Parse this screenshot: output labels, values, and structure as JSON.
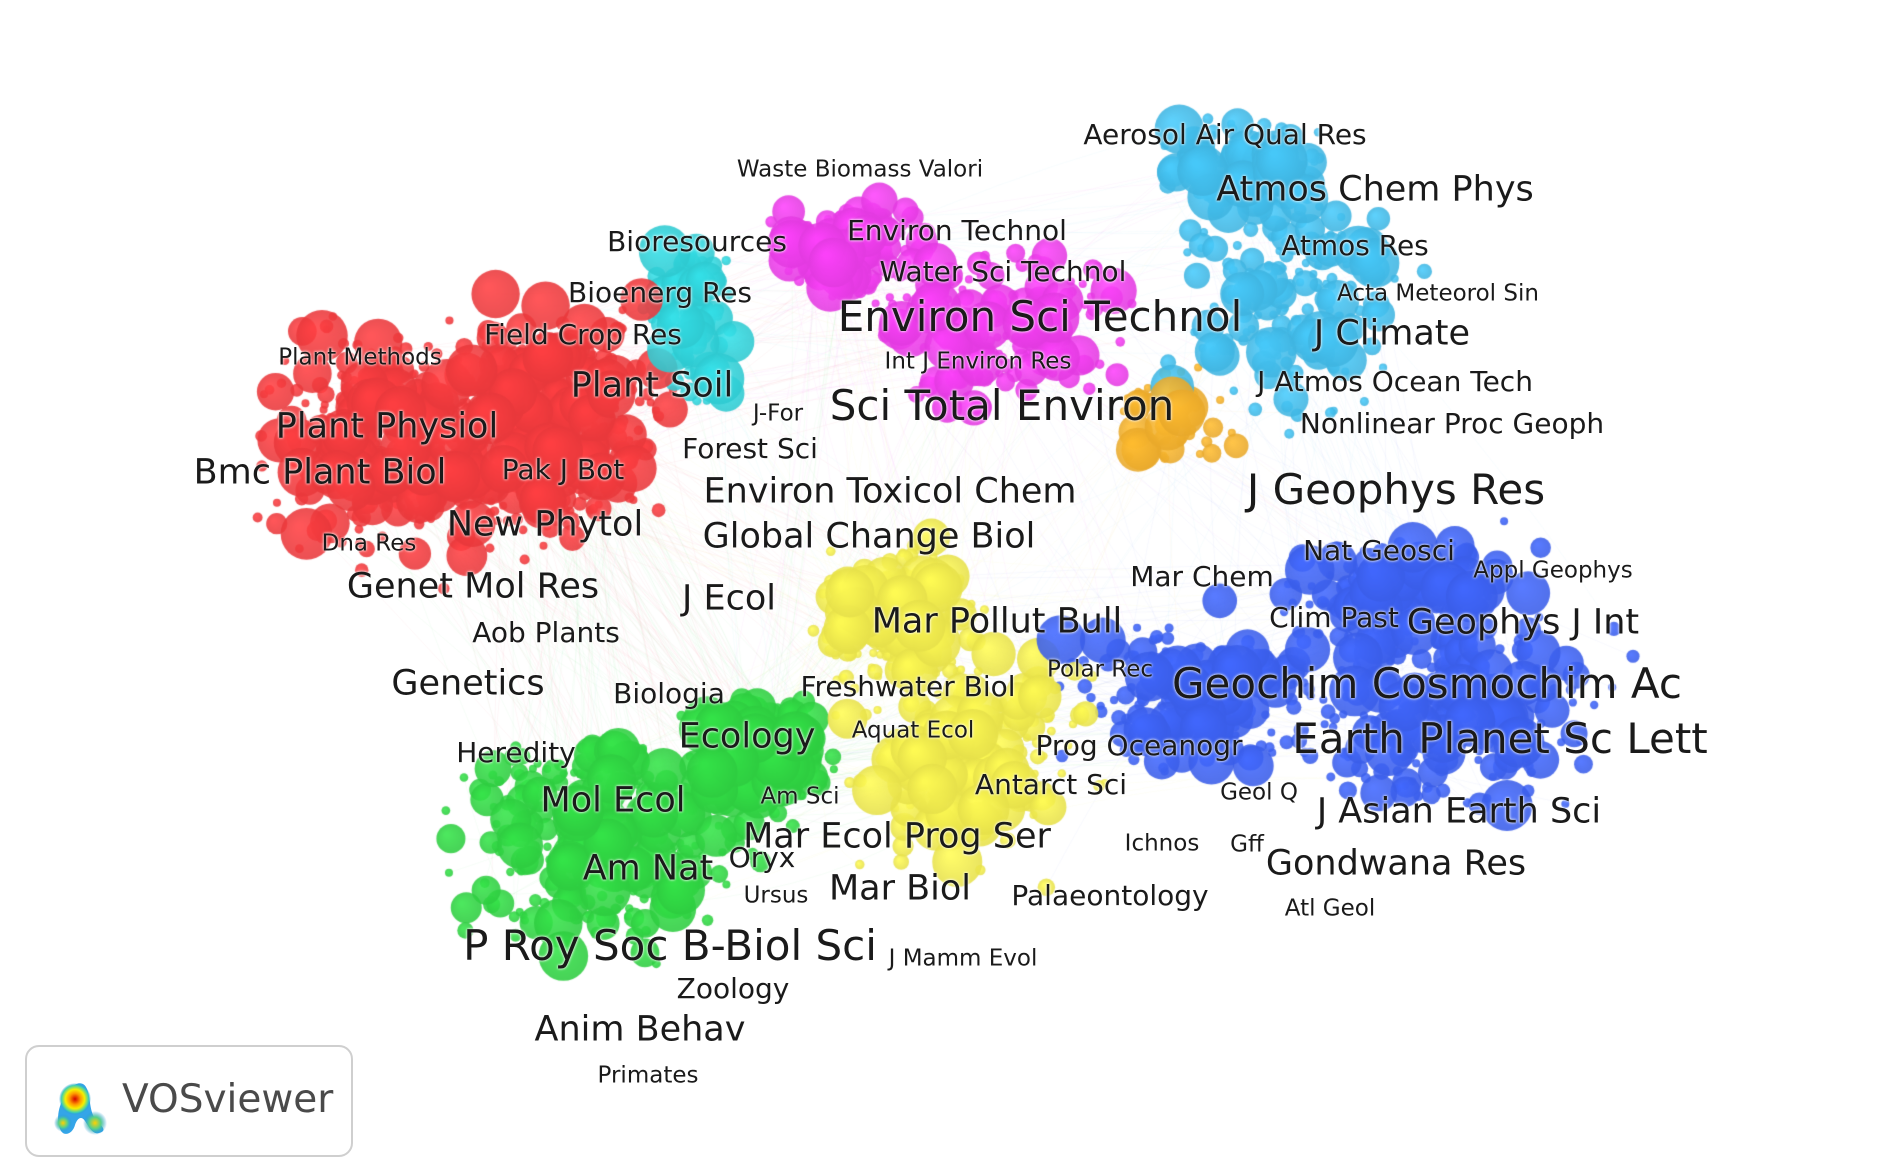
{
  "clusters": [
    {
      "id": "red",
      "color": "#e8383b"
    },
    {
      "id": "green",
      "color": "#2ecc40"
    },
    {
      "id": "blue",
      "color": "#3a5de8"
    },
    {
      "id": "yellow",
      "color": "#e6e04a"
    },
    {
      "id": "purple",
      "color": "#e23ae0"
    },
    {
      "id": "cyan",
      "color": "#2ec9d0"
    },
    {
      "id": "sky",
      "color": "#3fb4e0"
    },
    {
      "id": "orange",
      "color": "#e8a82a"
    }
  ],
  "labels": [
    {
      "text": "Aerosol Air Qual Res",
      "cluster": "sky",
      "level": 1
    },
    {
      "text": "Waste Biomass Valori",
      "cluster": "cyan",
      "level": 0
    },
    {
      "text": "Atmos Chem Phys",
      "cluster": "sky",
      "level": 2
    },
    {
      "text": "Bioresources",
      "cluster": "cyan",
      "level": 1
    },
    {
      "text": "Environ Technol",
      "cluster": "purple",
      "level": 1
    },
    {
      "text": "Atmos Res",
      "cluster": "sky",
      "level": 1
    },
    {
      "text": "Water Sci Technol",
      "cluster": "purple",
      "level": 1
    },
    {
      "text": "Bioenerg Res",
      "cluster": "red",
      "level": 1
    },
    {
      "text": "Acta Meteorol Sin",
      "cluster": "sky",
      "level": 0
    },
    {
      "text": "Environ Sci Technol",
      "cluster": "purple",
      "level": 3
    },
    {
      "text": "Field Crop Res",
      "cluster": "red",
      "level": 1
    },
    {
      "text": "J Climate",
      "cluster": "sky",
      "level": 2
    },
    {
      "text": "Plant Methods",
      "cluster": "red",
      "level": 0
    },
    {
      "text": "Int J Environ Res",
      "cluster": "purple",
      "level": 0
    },
    {
      "text": "Plant Soil",
      "cluster": "red",
      "level": 2
    },
    {
      "text": "J Atmos Ocean Tech",
      "cluster": "sky",
      "level": 1
    },
    {
      "text": "J-For",
      "cluster": "cyan",
      "level": 0
    },
    {
      "text": "Sci Total Environ",
      "cluster": "purple",
      "level": 3
    },
    {
      "text": "Plant Physiol",
      "cluster": "red",
      "level": 2
    },
    {
      "text": "Nonlinear Proc Geoph",
      "cluster": "sky",
      "level": 1
    },
    {
      "text": "Forest Sci",
      "cluster": "cyan",
      "level": 1
    },
    {
      "text": "Bmc Plant Biol",
      "cluster": "red",
      "level": 2
    },
    {
      "text": "Pak J Bot",
      "cluster": "red",
      "level": 1
    },
    {
      "text": "J Geophys Res",
      "cluster": "sky",
      "level": 3
    },
    {
      "text": "Environ Toxicol Chem",
      "cluster": "yellow",
      "level": 2
    },
    {
      "text": "New Phytol",
      "cluster": "red",
      "level": 2
    },
    {
      "text": "Global Change Biol",
      "cluster": "yellow",
      "level": 2
    },
    {
      "text": "Dna Res",
      "cluster": "red",
      "level": 0
    },
    {
      "text": "Nat Geosci",
      "cluster": "blue",
      "level": 1
    },
    {
      "text": "Appl Geophys",
      "cluster": "blue",
      "level": 0
    },
    {
      "text": "Mar Chem",
      "cluster": "blue",
      "level": 1
    },
    {
      "text": "Genet Mol Res",
      "cluster": "red",
      "level": 2
    },
    {
      "text": "J Ecol",
      "cluster": "red",
      "level": 2
    },
    {
      "text": "Clim Past",
      "cluster": "blue",
      "level": 1
    },
    {
      "text": "Geophys J Int",
      "cluster": "blue",
      "level": 2
    },
    {
      "text": "Mar Pollut Bull",
      "cluster": "yellow",
      "level": 2
    },
    {
      "text": "Aob Plants",
      "cluster": "red",
      "level": 1
    },
    {
      "text": "Polar Rec",
      "cluster": "yellow",
      "level": 0
    },
    {
      "text": "Genetics",
      "cluster": "red",
      "level": 2
    },
    {
      "text": "Freshwater Biol",
      "cluster": "yellow",
      "level": 1
    },
    {
      "text": "Geochim Cosmochim Ac",
      "cluster": "blue",
      "level": 3
    },
    {
      "text": "Biologia",
      "cluster": "green",
      "level": 1
    },
    {
      "text": "Ecology",
      "cluster": "green",
      "level": 2
    },
    {
      "text": "Aquat Ecol",
      "cluster": "yellow",
      "level": 0
    },
    {
      "text": "Earth Planet Sc Lett",
      "cluster": "blue",
      "level": 3
    },
    {
      "text": "Heredity",
      "cluster": "green",
      "level": 1
    },
    {
      "text": "Prog Oceanogr",
      "cluster": "yellow",
      "level": 1
    },
    {
      "text": "Antarct Sci",
      "cluster": "yellow",
      "level": 1
    },
    {
      "text": "Mol Ecol",
      "cluster": "green",
      "level": 2
    },
    {
      "text": "Am Sci",
      "cluster": "green",
      "level": 0
    },
    {
      "text": "Geol Q",
      "cluster": "blue",
      "level": 0
    },
    {
      "text": "J Asian Earth Sci",
      "cluster": "blue",
      "level": 2
    },
    {
      "text": "Mar Ecol Prog Ser",
      "cluster": "yellow",
      "level": 2
    },
    {
      "text": "Ichnos",
      "cluster": "blue",
      "level": 0
    },
    {
      "text": "Gff",
      "cluster": "blue",
      "level": 0
    },
    {
      "text": "Oryx",
      "cluster": "yellow",
      "level": 1
    },
    {
      "text": "Am Nat",
      "cluster": "green",
      "level": 2
    },
    {
      "text": "Gondwana Res",
      "cluster": "blue",
      "level": 2
    },
    {
      "text": "Mar Biol",
      "cluster": "yellow",
      "level": 2
    },
    {
      "text": "Ursus",
      "cluster": "green",
      "level": 0
    },
    {
      "text": "Palaeontology",
      "cluster": "blue",
      "level": 1
    },
    {
      "text": "Atl Geol",
      "cluster": "blue",
      "level": 0
    },
    {
      "text": "P Roy Soc B-Biol Sci",
      "cluster": "green",
      "level": 3
    },
    {
      "text": "J Mamm Evol",
      "cluster": "green",
      "level": 0
    },
    {
      "text": "Zoology",
      "cluster": "green",
      "level": 1
    },
    {
      "text": "Anim Behav",
      "cluster": "green",
      "level": 2
    },
    {
      "text": "Primates",
      "cluster": "green",
      "level": 0
    }
  ],
  "logo": {
    "text": "VOSviewer",
    "icon": "vosviewer-density-icon"
  }
}
